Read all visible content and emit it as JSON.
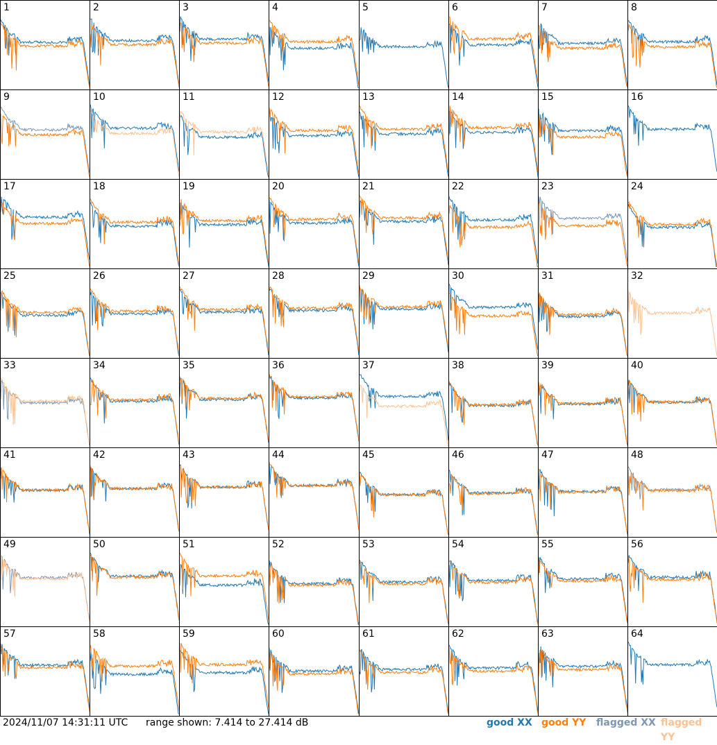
{
  "chart_data": {
    "type": "line",
    "panel_count": 64,
    "panel_labels": [
      "1",
      "2",
      "3",
      "4",
      "5",
      "6",
      "7",
      "8",
      "9",
      "10",
      "11",
      "12",
      "13",
      "14",
      "15",
      "16",
      "17",
      "18",
      "19",
      "20",
      "21",
      "22",
      "23",
      "24",
      "25",
      "26",
      "27",
      "28",
      "29",
      "30",
      "31",
      "32",
      "33",
      "34",
      "35",
      "36",
      "37",
      "38",
      "39",
      "40",
      "41",
      "42",
      "43",
      "44",
      "45",
      "46",
      "47",
      "48",
      "49",
      "50",
      "51",
      "52",
      "53",
      "54",
      "55",
      "56",
      "57",
      "58",
      "59",
      "60",
      "61",
      "62",
      "63",
      "64"
    ],
    "ylim": [
      7.414,
      27.414
    ],
    "yunit": "dB",
    "flagged_xx_panels": [
      9,
      23,
      33,
      48,
      49
    ],
    "flagged_yy_panels": [
      10,
      11,
      32,
      33,
      37,
      49
    ],
    "missing_xx_panels": [
      32
    ],
    "missing_yy_panels": [
      5,
      16,
      64
    ],
    "series": [
      {
        "name": "good XX",
        "color": "#1f77b4"
      },
      {
        "name": "good YY",
        "color": "#ff7f0e"
      },
      {
        "name": "flagged XX",
        "color": "#7b97b6"
      },
      {
        "name": "flagged YY",
        "color": "#fdc291"
      }
    ]
  },
  "footer": {
    "timestamp": "2024/11/07 14:31:11 UTC",
    "range_text": "range shown: 7.414 to 27.414 dB"
  },
  "legend": {
    "good_xx": "good XX",
    "good_yy": "good YY",
    "flagged_xx": "flagged XX",
    "flagged_yy": "flagged YY"
  },
  "colors": {
    "good_xx": "#1f77b4",
    "good_yy": "#ff7f0e",
    "flagged_xx": "#7b97b6",
    "flagged_yy": "#fdc291"
  }
}
